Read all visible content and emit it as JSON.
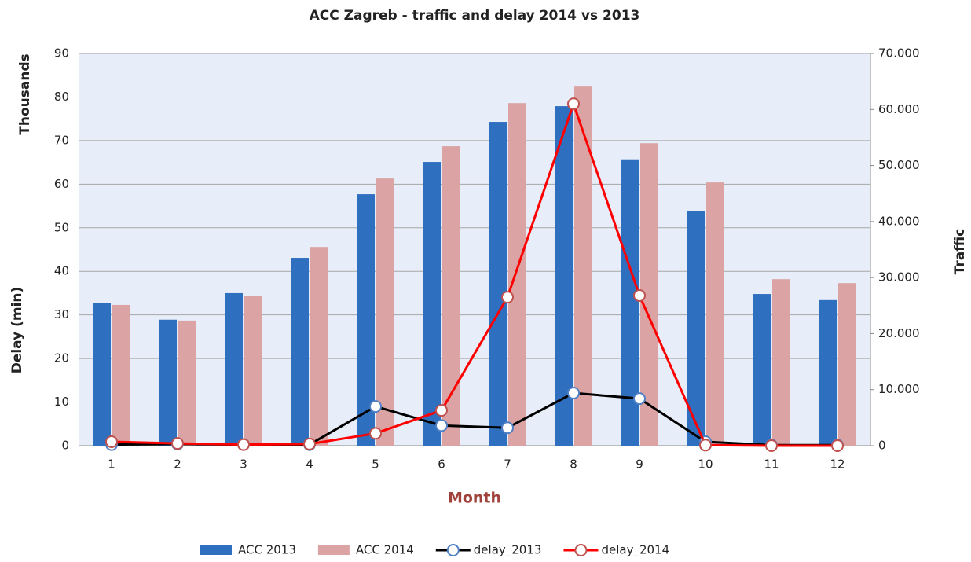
{
  "chart_data": {
    "type": "combo",
    "title": "ACC Zagreb - traffic and delay 2014 vs 2013",
    "y_label": "Delay (min)",
    "y_unit_label": "Thousands",
    "y2_label": "Traffic",
    "x_label": "Month",
    "categories": [
      "1",
      "2",
      "3",
      "4",
      "5",
      "6",
      "7",
      "8",
      "9",
      "10",
      "11",
      "12"
    ],
    "series": [
      {
        "name": "ACC 2013",
        "kind": "bar",
        "color": "#2f6fbf",
        "values": [
          32.8,
          28.9,
          35.0,
          43.1,
          57.7,
          65.1,
          74.3,
          77.9,
          65.7,
          53.9,
          34.8,
          33.4
        ]
      },
      {
        "name": "ACC 2014",
        "kind": "bar",
        "color": "#dba3a3",
        "values": [
          32.3,
          28.7,
          34.3,
          45.6,
          61.3,
          68.7,
          78.6,
          82.4,
          69.4,
          60.4,
          38.2,
          37.3
        ]
      },
      {
        "name": "delay_2013",
        "kind": "line",
        "axis": "y2",
        "color": "#000000",
        "marker_color": "#4f7fc4",
        "values": [
          200,
          300,
          200,
          200,
          7000,
          3600,
          3200,
          9400,
          8400,
          700,
          100,
          100
        ]
      },
      {
        "name": "delay_2014",
        "kind": "line",
        "axis": "y2",
        "color": "#ff0000",
        "marker_color": "#c0504d",
        "values": [
          700,
          400,
          200,
          300,
          2200,
          6300,
          26500,
          61000,
          26800,
          100,
          0,
          0
        ]
      }
    ],
    "ylim": [
      0,
      90
    ],
    "yticks": [
      0,
      10,
      20,
      30,
      40,
      50,
      60,
      70,
      80,
      90
    ],
    "y2lim": [
      0,
      70000
    ],
    "y2ticks": [
      0,
      {
        "value": 10000,
        "label": "10.000"
      },
      {
        "value": 20000,
        "label": "20.000"
      },
      {
        "value": 30000,
        "label": "30.000"
      },
      {
        "value": 40000,
        "label": "40.000"
      },
      {
        "value": 50000,
        "label": "50.000"
      },
      {
        "value": 60000,
        "label": "60.000"
      },
      {
        "value": 70000,
        "label": "70.000"
      }
    ],
    "grid": true,
    "legend": "bottom"
  }
}
